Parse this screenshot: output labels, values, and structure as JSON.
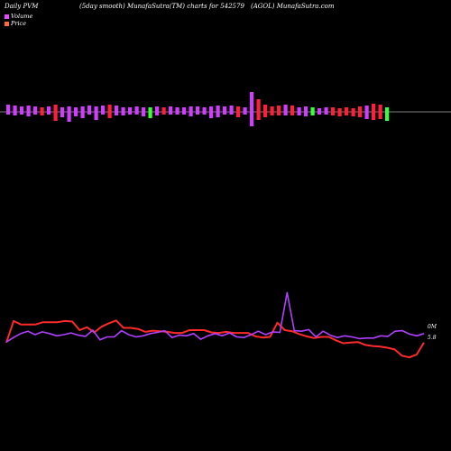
{
  "header": {
    "left": "Daily PVM",
    "mid1": "(5day smooth) MunafaSutra(TM) charts for 542579",
    "mid2": "(AGOL) MunafaSutra.com"
  },
  "legend": {
    "volume_label": "Volume",
    "price_label": "Price",
    "volume_color": "#e64aff",
    "price_color": "#ff6a3d"
  },
  "chart_data": [
    {
      "type": "bar",
      "series": [
        {
          "name": "Volume",
          "values": [
            8,
            7,
            6,
            7,
            6,
            5,
            6,
            8,
            5,
            6,
            5,
            6,
            7,
            6,
            7,
            8,
            7,
            5,
            5,
            6,
            5,
            5,
            6,
            5,
            6,
            5,
            5,
            6,
            6,
            5,
            6,
            7,
            6,
            7,
            6,
            5,
            22,
            14,
            8,
            6,
            7,
            8,
            7,
            5,
            6,
            5,
            4,
            5,
            5,
            4,
            5,
            4,
            6,
            7,
            9,
            8,
            5
          ],
          "colors": [
            "m",
            "m",
            "m",
            "m",
            "m",
            "r",
            "m",
            "r",
            "m",
            "m",
            "m",
            "m",
            "m",
            "m",
            "m",
            "r",
            "m",
            "m",
            "m",
            "m",
            "m",
            "g",
            "m",
            "r",
            "m",
            "m",
            "m",
            "m",
            "m",
            "m",
            "m",
            "m",
            "m",
            "m",
            "r",
            "m",
            "m",
            "r",
            "r",
            "r",
            "r",
            "m",
            "r",
            "m",
            "m",
            "g",
            "m",
            "m",
            "r",
            "r",
            "r",
            "r",
            "r",
            "m",
            "r",
            "r",
            "g"
          ],
          "below": [
            3,
            4,
            3,
            5,
            3,
            4,
            3,
            10,
            6,
            11,
            5,
            7,
            3,
            9,
            3,
            7,
            4,
            4,
            3,
            3,
            5,
            7,
            4,
            3,
            3,
            3,
            3,
            5,
            3,
            3,
            7,
            6,
            3,
            3,
            6,
            3,
            16,
            9,
            6,
            4,
            4,
            4,
            4,
            4,
            5,
            4,
            3,
            3,
            4,
            5,
            4,
            5,
            6,
            8,
            9,
            8,
            10
          ]
        }
      ],
      "axis_line": true
    },
    {
      "type": "line",
      "series": [
        {
          "name": "Price",
          "values": [
            3.2,
            7.0,
            6.4,
            6.4,
            6.4,
            6.8,
            6.8,
            6.8,
            7.0,
            6.9,
            5.4,
            5.9,
            5.0,
            6.0,
            6.6,
            7.1,
            5.8,
            5.8,
            5.6,
            5.1,
            5.3,
            5.2,
            5.1,
            4.9,
            4.9,
            5.4,
            5.4,
            5.4,
            5.0,
            4.9,
            5.1,
            4.9,
            4.9,
            4.9,
            4.3,
            4.1,
            4.2,
            6.7,
            5.4,
            5.2,
            4.7,
            4.3,
            4.0,
            4.2,
            4.2,
            3.6,
            3.1,
            3.2,
            3.3,
            2.8,
            2.6,
            2.5,
            2.3,
            2.0,
            0.9,
            0.6,
            1.1,
            3.2
          ]
        },
        {
          "name": "Volume",
          "values": [
            3.3,
            4.1,
            4.8,
            5.2,
            4.6,
            5.1,
            4.8,
            4.4,
            4.6,
            4.9,
            4.5,
            4.3,
            5.4,
            3.7,
            4.2,
            4.2,
            5.3,
            4.6,
            4.2,
            4.4,
            4.8,
            5.0,
            5.3,
            4.1,
            4.5,
            4.4,
            4.8,
            3.8,
            4.4,
            4.8,
            4.4,
            4.9,
            4.2,
            4.1,
            4.6,
            5.2,
            4.6,
            5.1,
            5.0,
            12.0,
            5.3,
            5.2,
            5.5,
            4.2,
            5.2,
            4.5,
            4.1,
            4.4,
            4.2,
            3.9,
            4.0,
            4.0,
            4.4,
            4.3,
            5.2,
            5.3,
            4.7,
            4.4,
            4.8
          ]
        }
      ],
      "end_labels": [
        "0M",
        "5.8"
      ]
    }
  ]
}
